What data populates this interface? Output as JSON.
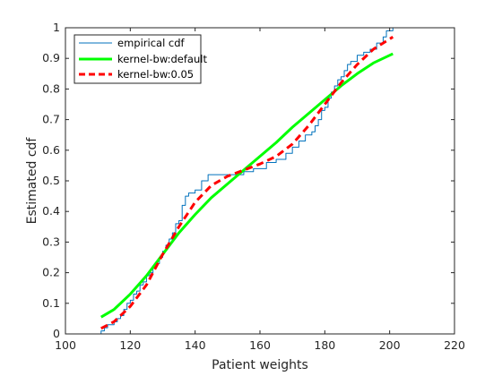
{
  "chart_data": {
    "type": "line",
    "xlabel": "Patient weights",
    "ylabel": "Estimated cdf",
    "xlim": [
      100,
      220
    ],
    "ylim": [
      0,
      1
    ],
    "x_ticks": [
      100,
      120,
      140,
      160,
      180,
      200,
      220
    ],
    "y_ticks": [
      0,
      0.1,
      0.2,
      0.3,
      0.4,
      0.5,
      0.6,
      0.7,
      0.8,
      0.9,
      1
    ],
    "grid": false,
    "legend_position": "top-left",
    "series": [
      {
        "name": "empirical cdf",
        "style": "step",
        "color": "#0072bd",
        "x": [
          111,
          112,
          113,
          115,
          116,
          117,
          118,
          119,
          120,
          121,
          122,
          123,
          124,
          125,
          126,
          127,
          128,
          129,
          130,
          131,
          132,
          133,
          134,
          135,
          136,
          137,
          138,
          140,
          142,
          144,
          146,
          150,
          155,
          158,
          162,
          165,
          168,
          170,
          172,
          174,
          176,
          177,
          178,
          179,
          180,
          181,
          182,
          183,
          184,
          185,
          186,
          187,
          188,
          190,
          192,
          194,
          196,
          198,
          199,
          201
        ],
        "y": [
          0.01,
          0.02,
          0.03,
          0.04,
          0.05,
          0.06,
          0.08,
          0.1,
          0.11,
          0.13,
          0.14,
          0.16,
          0.17,
          0.19,
          0.2,
          0.22,
          0.23,
          0.25,
          0.27,
          0.29,
          0.31,
          0.33,
          0.36,
          0.37,
          0.42,
          0.45,
          0.46,
          0.47,
          0.5,
          0.52,
          0.52,
          0.52,
          0.53,
          0.54,
          0.56,
          0.57,
          0.59,
          0.61,
          0.63,
          0.65,
          0.66,
          0.68,
          0.7,
          0.73,
          0.74,
          0.77,
          0.79,
          0.81,
          0.83,
          0.84,
          0.86,
          0.88,
          0.89,
          0.91,
          0.92,
          0.93,
          0.95,
          0.97,
          0.99,
          1.0
        ]
      },
      {
        "name": "kernel-bw:default",
        "style": "solid",
        "color": "#00ff00",
        "x": [
          111,
          115,
          120,
          125,
          130,
          135,
          140,
          145,
          150,
          155,
          160,
          165,
          170,
          175,
          180,
          185,
          190,
          195,
          201
        ],
        "y": [
          0.055,
          0.08,
          0.13,
          0.19,
          0.26,
          0.33,
          0.39,
          0.445,
          0.49,
          0.535,
          0.58,
          0.625,
          0.675,
          0.72,
          0.765,
          0.81,
          0.85,
          0.885,
          0.915
        ]
      },
      {
        "name": "kernel-bw:0.05",
        "style": "dashed",
        "color": "#ff0000",
        "x": [
          111,
          115,
          120,
          125,
          130,
          135,
          140,
          145,
          150,
          155,
          160,
          165,
          170,
          175,
          180,
          185,
          190,
          195,
          201
        ],
        "y": [
          0.018,
          0.04,
          0.09,
          0.16,
          0.26,
          0.35,
          0.43,
          0.485,
          0.515,
          0.535,
          0.555,
          0.58,
          0.62,
          0.68,
          0.75,
          0.82,
          0.88,
          0.93,
          0.97
        ]
      }
    ]
  }
}
